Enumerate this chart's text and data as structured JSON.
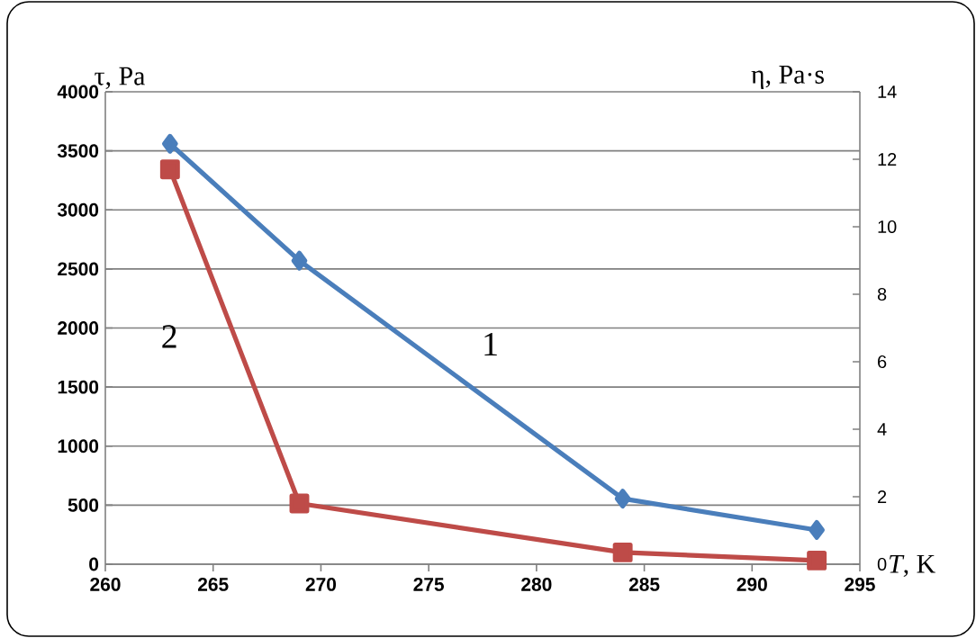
{
  "chart_data": {
    "type": "line",
    "xlabel": "*T*, K",
    "ylabel": "τ, Pa",
    "y2label": "η, Pa·s",
    "x": [
      263,
      269,
      284,
      293
    ],
    "series": [
      {
        "name": "1",
        "color": "#4a7ebb",
        "marker": "diamond",
        "values": [
          3560,
          2570,
          555,
          290
        ]
      },
      {
        "name": "2",
        "color": "#be4b48",
        "marker": "square",
        "axis": "y2",
        "values": [
          11.7,
          1.8,
          0.35,
          0.11
        ]
      }
    ],
    "xlim": [
      260,
      295
    ],
    "xticks": [
      260,
      265,
      270,
      275,
      280,
      285,
      290,
      295
    ],
    "ylim": [
      0,
      4000
    ],
    "yticks": [
      0,
      500,
      1000,
      1500,
      2000,
      2500,
      3000,
      3500,
      4000
    ],
    "y2lim": [
      0,
      14
    ],
    "y2ticks": [
      0,
      2,
      4,
      6,
      8,
      10,
      12,
      14
    ],
    "grid": "y",
    "line_style": "solid"
  }
}
